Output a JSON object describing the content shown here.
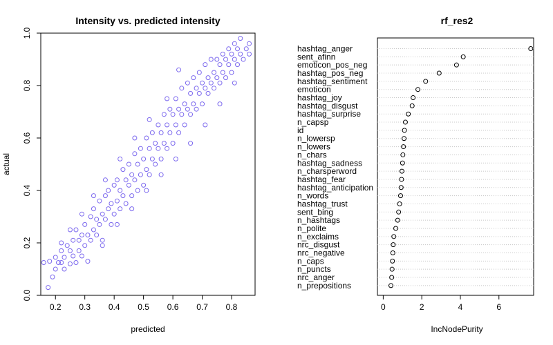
{
  "chart_data": [
    {
      "type": "scatter",
      "title": "Intensity vs. predicted intensity",
      "xlabel": "predicted",
      "ylabel": "actual",
      "xlim": [
        0.15,
        0.88
      ],
      "ylim": [
        0.0,
        1.0
      ],
      "xticks": [
        "0.2",
        "0.3",
        "0.4",
        "0.5",
        "0.6",
        "0.7",
        "0.8"
      ],
      "yticks": [
        "0.0",
        "0.2",
        "0.4",
        "0.6",
        "0.8",
        "1.0"
      ],
      "grid": false,
      "marker_color": "#7B68EE",
      "series": [
        {
          "points": [
            [
              0.16,
              0.125
            ],
            [
              0.175,
              0.03
            ],
            [
              0.18,
              0.13
            ],
            [
              0.19,
              0.07
            ],
            [
              0.2,
              0.1
            ],
            [
              0.2,
              0.145
            ],
            [
              0.21,
              0.125
            ],
            [
              0.22,
              0.125
            ],
            [
              0.22,
              0.2
            ],
            [
              0.23,
              0.1
            ],
            [
              0.23,
              0.145
            ],
            [
              0.24,
              0.19
            ],
            [
              0.25,
              0.12
            ],
            [
              0.25,
              0.17
            ],
            [
              0.26,
              0.15
            ],
            [
              0.26,
              0.21
            ],
            [
              0.27,
              0.125
            ],
            [
              0.27,
              0.25
            ],
            [
              0.28,
              0.17
            ],
            [
              0.28,
              0.21
            ],
            [
              0.29,
              0.15
            ],
            [
              0.29,
              0.23
            ],
            [
              0.3,
              0.19
            ],
            [
              0.3,
              0.27
            ],
            [
              0.31,
              0.13
            ],
            [
              0.31,
              0.23
            ],
            [
              0.32,
              0.21
            ],
            [
              0.32,
              0.3
            ],
            [
              0.33,
              0.25
            ],
            [
              0.33,
              0.33
            ],
            [
              0.34,
              0.23
            ],
            [
              0.34,
              0.29
            ],
            [
              0.35,
              0.27
            ],
            [
              0.35,
              0.36
            ],
            [
              0.36,
              0.21
            ],
            [
              0.36,
              0.31
            ],
            [
              0.37,
              0.29
            ],
            [
              0.37,
              0.38
            ],
            [
              0.38,
              0.33
            ],
            [
              0.38,
              0.4
            ],
            [
              0.39,
              0.27
            ],
            [
              0.39,
              0.35
            ],
            [
              0.4,
              0.31
            ],
            [
              0.4,
              0.42
            ],
            [
              0.41,
              0.36
            ],
            [
              0.41,
              0.44
            ],
            [
              0.42,
              0.33
            ],
            [
              0.42,
              0.4
            ],
            [
              0.43,
              0.38
            ],
            [
              0.43,
              0.48
            ],
            [
              0.44,
              0.35
            ],
            [
              0.44,
              0.44
            ],
            [
              0.45,
              0.42
            ],
            [
              0.45,
              0.5
            ],
            [
              0.46,
              0.38
            ],
            [
              0.46,
              0.46
            ],
            [
              0.47,
              0.44
            ],
            [
              0.47,
              0.54
            ],
            [
              0.48,
              0.4
            ],
            [
              0.48,
              0.5
            ],
            [
              0.49,
              0.46
            ],
            [
              0.49,
              0.56
            ],
            [
              0.5,
              0.42
            ],
            [
              0.5,
              0.52
            ],
            [
              0.51,
              0.48
            ],
            [
              0.51,
              0.6
            ],
            [
              0.52,
              0.46
            ],
            [
              0.52,
              0.56
            ],
            [
              0.53,
              0.52
            ],
            [
              0.53,
              0.62
            ],
            [
              0.54,
              0.5
            ],
            [
              0.54,
              0.58
            ],
            [
              0.55,
              0.56
            ],
            [
              0.55,
              0.65
            ],
            [
              0.56,
              0.52
            ],
            [
              0.56,
              0.62
            ],
            [
              0.57,
              0.58
            ],
            [
              0.57,
              0.69
            ],
            [
              0.58,
              0.56
            ],
            [
              0.58,
              0.65
            ],
            [
              0.59,
              0.62
            ],
            [
              0.59,
              0.71
            ],
            [
              0.6,
              0.58
            ],
            [
              0.6,
              0.69
            ],
            [
              0.61,
              0.65
            ],
            [
              0.61,
              0.75
            ],
            [
              0.62,
              0.62
            ],
            [
              0.62,
              0.71
            ],
            [
              0.63,
              0.69
            ],
            [
              0.63,
              0.79
            ],
            [
              0.64,
              0.65
            ],
            [
              0.64,
              0.73
            ],
            [
              0.65,
              0.71
            ],
            [
              0.65,
              0.81
            ],
            [
              0.66,
              0.69
            ],
            [
              0.66,
              0.77
            ],
            [
              0.67,
              0.73
            ],
            [
              0.67,
              0.83
            ],
            [
              0.68,
              0.71
            ],
            [
              0.68,
              0.79
            ],
            [
              0.69,
              0.77
            ],
            [
              0.69,
              0.85
            ],
            [
              0.7,
              0.73
            ],
            [
              0.7,
              0.81
            ],
            [
              0.71,
              0.79
            ],
            [
              0.71,
              0.88
            ],
            [
              0.72,
              0.77
            ],
            [
              0.72,
              0.83
            ],
            [
              0.73,
              0.81
            ],
            [
              0.73,
              0.9
            ],
            [
              0.74,
              0.79
            ],
            [
              0.74,
              0.85
            ],
            [
              0.75,
              0.83
            ],
            [
              0.75,
              0.9
            ],
            [
              0.76,
              0.81
            ],
            [
              0.76,
              0.88
            ],
            [
              0.77,
              0.85
            ],
            [
              0.77,
              0.92
            ],
            [
              0.78,
              0.83
            ],
            [
              0.78,
              0.9
            ],
            [
              0.79,
              0.88
            ],
            [
              0.79,
              0.94
            ],
            [
              0.8,
              0.85
            ],
            [
              0.8,
              0.92
            ],
            [
              0.81,
              0.9
            ],
            [
              0.81,
              0.96
            ],
            [
              0.82,
              0.88
            ],
            [
              0.82,
              0.94
            ],
            [
              0.83,
              0.92
            ],
            [
              0.83,
              0.98
            ],
            [
              0.84,
              0.9
            ],
            [
              0.85,
              0.94
            ],
            [
              0.86,
              0.92
            ],
            [
              0.86,
              0.96
            ],
            [
              0.62,
              0.86
            ],
            [
              0.58,
              0.75
            ],
            [
              0.52,
              0.67
            ],
            [
              0.47,
              0.6
            ],
            [
              0.42,
              0.52
            ],
            [
              0.37,
              0.44
            ],
            [
              0.33,
              0.38
            ],
            [
              0.29,
              0.31
            ],
            [
              0.25,
              0.25
            ],
            [
              0.22,
              0.17
            ],
            [
              0.36,
              0.19
            ],
            [
              0.41,
              0.27
            ],
            [
              0.46,
              0.33
            ],
            [
              0.51,
              0.4
            ],
            [
              0.56,
              0.46
            ],
            [
              0.61,
              0.52
            ],
            [
              0.66,
              0.58
            ],
            [
              0.71,
              0.65
            ],
            [
              0.76,
              0.73
            ],
            [
              0.81,
              0.81
            ]
          ]
        }
      ]
    },
    {
      "type": "dot",
      "title": "rf_res2",
      "xlabel": "IncNodePurity",
      "xlim": [
        -0.3,
        7.8
      ],
      "xticks": [
        "0",
        "2",
        "4",
        "6"
      ],
      "grid": "horizontal dotted",
      "categories": [
        "hashtag_anger",
        "sent_afinn",
        "emoticon_pos_neg",
        "hashtag_pos_neg",
        "hashtag_sentiment",
        "emoticon",
        "hashtag_joy",
        "hashtag_disgust",
        "hashtag_surprise",
        "n_capsp",
        "id",
        "n_lowersp",
        "n_lowers",
        "n_chars",
        "hashtag_sadness",
        "n_charsperword",
        "hashtag_fear",
        "hashtag_anticipation",
        "n_words",
        "hashtag_trust",
        "sent_bing",
        "n_hashtags",
        "n_polite",
        "n_exclaims",
        "nrc_disgust",
        "nrc_negative",
        "n_caps",
        "n_puncts",
        "nrc_anger",
        "n_prepositions"
      ],
      "values": [
        7.65,
        4.15,
        3.8,
        2.9,
        2.2,
        1.8,
        1.55,
        1.5,
        1.3,
        1.15,
        1.1,
        1.08,
        1.05,
        1.02,
        1.0,
        0.97,
        0.95,
        0.93,
        0.9,
        0.85,
        0.8,
        0.75,
        0.65,
        0.55,
        0.52,
        0.5,
        0.48,
        0.46,
        0.44,
        0.4
      ]
    }
  ]
}
